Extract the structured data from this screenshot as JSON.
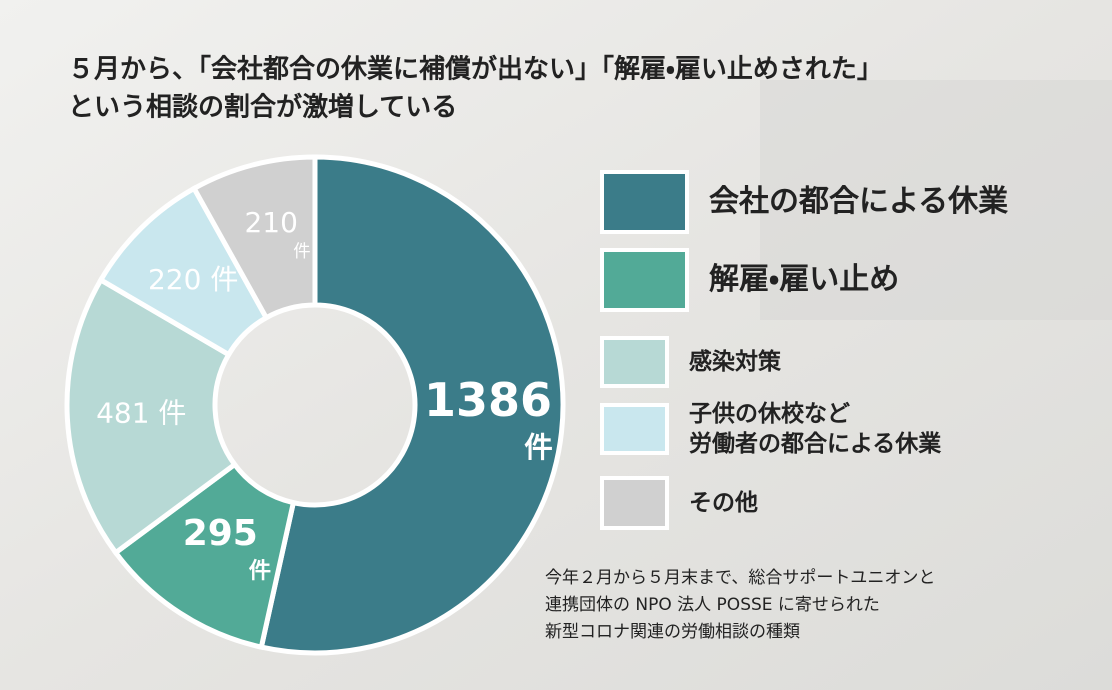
{
  "chart_data": {
    "type": "donut",
    "title_lines": [
      "５月から、「会社都合の休業に補償が出ない」「解雇・雇い止めされた」",
      "という相談の割合が激増している"
    ],
    "categories": [
      "会社の都合による休業",
      "解雇・雇い止め",
      "感染対策",
      "子供の休校など\n労働者の都合による休業",
      "その他"
    ],
    "values": [
      1386,
      295,
      481,
      220,
      210
    ],
    "value_labels": [
      "1386件",
      "295件",
      "481 件",
      "220 件",
      "210件"
    ],
    "colors": [
      "#3b7c89",
      "#52aa97",
      "#b7d9d5",
      "#c9e7ee",
      "#d0d0d0"
    ],
    "note_lines": [
      "今年２月から５月末まで、総合サポートユニオンと",
      "連携団体の NPO 法人 POSSE に寄せられた",
      "新型コロナ関連の労働相談の種類"
    ]
  }
}
